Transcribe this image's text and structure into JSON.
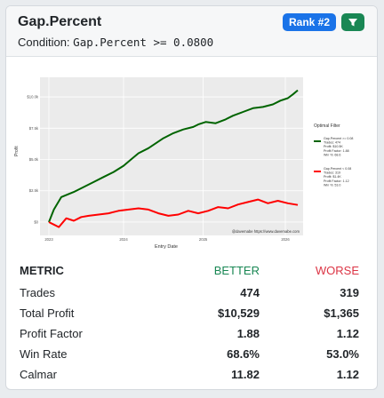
{
  "header": {
    "title": "Gap.Percent",
    "condition_label": "Condition:",
    "condition_expr": "Gap.Percent >= 0.0800",
    "rank_label": "Rank #2",
    "filter_icon": "filter-funnel-icon"
  },
  "chart_data": {
    "type": "line",
    "xlabel": "Entry Date",
    "ylabel": "Profit",
    "x_ticks": [
      "2023",
      "2024",
      "2025",
      "2026"
    ],
    "y_ticks": [
      "$0",
      "$2.5k",
      "$5.0k",
      "$7.5k",
      "$10.0k"
    ],
    "ylim": [
      -500,
      11000
    ],
    "watermark": "@davemabe https://www.davemabe.com",
    "legend_title": "Optimal Filter",
    "series": [
      {
        "name": "Gap.Percent >= 0.08",
        "color": "#006400",
        "legend_lines": [
          "Gap.Percent >= 0.08",
          "Trades: 474",
          "Profit: $10.5K",
          "Profit Factor: 1.88",
          "Win %: 68.6"
        ],
        "x": [
          0,
          0.02,
          0.05,
          0.1,
          0.14,
          0.18,
          0.22,
          0.26,
          0.3,
          0.33,
          0.36,
          0.4,
          0.43,
          0.46,
          0.5,
          0.54,
          0.58,
          0.6,
          0.63,
          0.67,
          0.71,
          0.74,
          0.78,
          0.82,
          0.86,
          0.9,
          0.93,
          0.96,
          0.98,
          1.0
        ],
        "y": [
          0,
          1000,
          2000,
          2400,
          2800,
          3200,
          3600,
          4000,
          4500,
          5000,
          5500,
          5900,
          6300,
          6700,
          7100,
          7400,
          7600,
          7800,
          8000,
          7900,
          8200,
          8500,
          8800,
          9100,
          9200,
          9400,
          9700,
          9900,
          10200,
          10529
        ]
      },
      {
        "name": "Gap.Percent < 0.08",
        "color": "#ff0000",
        "legend_lines": [
          "Gap.Percent < 0.08",
          "Trades: 319",
          "Profit: $1.4K",
          "Profit Factor: 1.12",
          "Win %: 53.0"
        ],
        "x": [
          0,
          0.02,
          0.04,
          0.07,
          0.1,
          0.13,
          0.16,
          0.2,
          0.24,
          0.28,
          0.32,
          0.36,
          0.4,
          0.44,
          0.48,
          0.52,
          0.56,
          0.6,
          0.64,
          0.68,
          0.72,
          0.76,
          0.8,
          0.84,
          0.88,
          0.92,
          0.96,
          1.0
        ],
        "y": [
          0,
          -200,
          -400,
          300,
          100,
          400,
          500,
          600,
          700,
          900,
          1000,
          1100,
          1000,
          700,
          500,
          600,
          900,
          700,
          900,
          1200,
          1100,
          1400,
          1600,
          1800,
          1500,
          1700,
          1500,
          1365
        ]
      }
    ]
  },
  "metrics": {
    "headers": {
      "metric": "METRIC",
      "better": "BETTER",
      "worse": "WORSE"
    },
    "rows": [
      {
        "metric": "Trades",
        "better": "474",
        "worse": "319"
      },
      {
        "metric": "Total Profit",
        "better": "$10,529",
        "worse": "$1,365"
      },
      {
        "metric": "Profit Factor",
        "better": "1.88",
        "worse": "1.12"
      },
      {
        "metric": "Win Rate",
        "better": "68.6%",
        "worse": "53.0%"
      },
      {
        "metric": "Calmar",
        "better": "11.82",
        "worse": "1.12"
      }
    ]
  }
}
